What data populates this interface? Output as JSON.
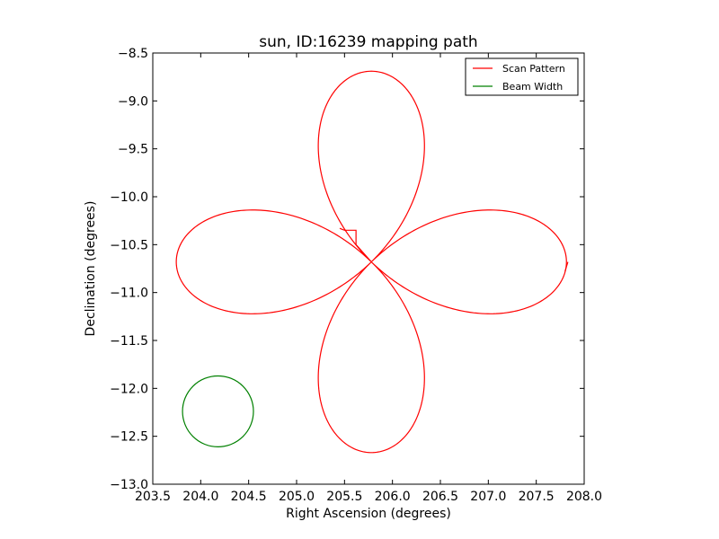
{
  "chart_data": {
    "type": "line",
    "title": "sun, ID:16239 mapping path",
    "xlabel": "Right Ascension (degrees)",
    "ylabel": "Declination (degrees)",
    "xlim": [
      203.5,
      208.0
    ],
    "ylim": [
      -13.0,
      -8.5
    ],
    "x_ticks": [
      203.5,
      204.0,
      204.5,
      205.0,
      205.5,
      206.0,
      206.5,
      207.0,
      207.5,
      208.0
    ],
    "x_tick_labels": [
      "203.5",
      "204.0",
      "204.5",
      "205.0",
      "205.5",
      "206.0",
      "206.5",
      "207.0",
      "207.5",
      "208.0"
    ],
    "y_ticks": [
      -8.5,
      -9.0,
      -9.5,
      -10.0,
      -10.5,
      -11.0,
      -11.5,
      -12.0,
      -12.5,
      -13.0
    ],
    "y_tick_labels": [
      "−8.5",
      "−9.0",
      "−9.5",
      "−10.0",
      "−10.5",
      "−11.0",
      "−11.5",
      "−12.0",
      "−12.5",
      "−13.0"
    ],
    "grid": false,
    "legend_position": "top-right",
    "series": [
      {
        "name": "Scan Pattern",
        "color": "#ff0000",
        "pattern": "four-petal rose",
        "center": [
          205.78,
          -10.68
        ],
        "petal_tips": [
          [
            205.78,
            -8.69
          ],
          [
            207.83,
            -10.68
          ],
          [
            205.78,
            -12.67
          ],
          [
            203.76,
            -10.68
          ]
        ],
        "petal_half_width": 0.55,
        "start_segment": [
          [
            205.78,
            -10.68
          ],
          [
            205.62,
            -10.5
          ],
          [
            205.62,
            -10.35
          ],
          [
            205.5,
            -10.35
          ],
          [
            205.45,
            -10.33
          ]
        ],
        "end_segment": [
          [
            207.83,
            -10.68
          ],
          [
            207.8,
            -10.78
          ]
        ]
      },
      {
        "name": "Beam Width",
        "color": "#008000",
        "pattern": "circle",
        "center": [
          204.18,
          -12.24
        ],
        "radius": 0.37
      }
    ]
  }
}
